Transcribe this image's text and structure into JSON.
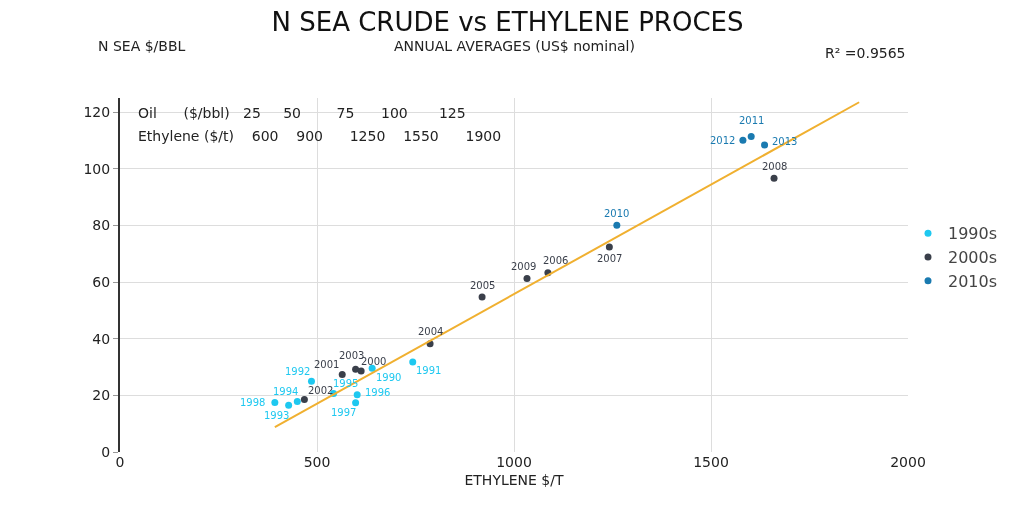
{
  "chart_data": {
    "type": "scatter",
    "title": "N SEA CRUDE vs ETHYLENE PROCES",
    "subtitle": "ANNUAL AVERAGES (US$ nominal)",
    "xlabel": "ETHYLENE $/T",
    "ylabel": "N SEA $/BBL",
    "xlim": [
      0,
      2000
    ],
    "xticks": [
      0,
      500,
      1000,
      1500,
      2000
    ],
    "ylim": [
      0,
      125
    ],
    "yticks": [
      0,
      20,
      40,
      60,
      80,
      100,
      120
    ],
    "grid": true,
    "legend": "right",
    "marker": "circle",
    "series": [
      {
        "name": "1990s",
        "color": "#1ec8f0",
        "x": [
          640,
          743,
          486,
          428,
          450,
          542,
          602,
          598,
          393
        ],
        "values": [
          29.6,
          31.8,
          25,
          16.5,
          17.8,
          20.7,
          20.2,
          17.4,
          17.5
        ]
      },
      {
        "name": "2000s",
        "color": "#3a3f4a",
        "x": [
          612,
          564,
          468,
          598,
          787,
          919,
          1086,
          1242,
          1660,
          1033
        ],
        "values": [
          28.6,
          27.4,
          18.5,
          29.2,
          38.2,
          54.7,
          63.3,
          72.4,
          96.7,
          61.3
        ]
      },
      {
        "name": "2010s",
        "color": "#1a7ab0",
        "x": [
          1261,
          1602,
          1581,
          1636
        ],
        "values": [
          80.1,
          111.4,
          110.1,
          108.4
        ]
      },
      {
        "type": "line",
        "color": "#f0b030",
        "x": [
          393,
          1876
        ],
        "values": [
          8.8,
          123.5
        ],
        "line_style": "solid",
        "marker": "none"
      }
    ],
    "annotations": [
      "R² =0.9565",
      "Oil      ($/bbl)   25     50        75      100       125",
      "Ethylene ($/t)    600    900      1250    1550      1900",
      {
        "text": "1990",
        "x": 640,
        "y": 29.6
      },
      {
        "text": "1991",
        "x": 743,
        "y": 31.8
      },
      {
        "text": "1992",
        "x": 486,
        "y": 25
      },
      {
        "text": "1993",
        "x": 428,
        "y": 16.5
      },
      {
        "text": "1994",
        "x": 450,
        "y": 17.8
      },
      {
        "text": "1995",
        "x": 542,
        "y": 20.7
      },
      {
        "text": "1996",
        "x": 602,
        "y": 20.2
      },
      {
        "text": "1997",
        "x": 598,
        "y": 17.4
      },
      {
        "text": "1998",
        "x": 393,
        "y": 17.5
      },
      {
        "text": "2000",
        "x": 612,
        "y": 28.6
      },
      {
        "text": "2001",
        "x": 564,
        "y": 27.4
      },
      {
        "text": "2002",
        "x": 468,
        "y": 18.5
      },
      {
        "text": "2003",
        "x": 598,
        "y": 29.2
      },
      {
        "text": "2004",
        "x": 787,
        "y": 38.2
      },
      {
        "text": "2005",
        "x": 919,
        "y": 54.7
      },
      {
        "text": "2006",
        "x": 1086,
        "y": 63.3
      },
      {
        "text": "2007",
        "x": 1242,
        "y": 72.4
      },
      {
        "text": "2008",
        "x": 1660,
        "y": 96.7
      },
      {
        "text": "2009",
        "x": 1033,
        "y": 61.3
      },
      {
        "text": "2010",
        "x": 1261,
        "y": 80.1
      },
      {
        "text": "2011",
        "x": 1602,
        "y": 111.4
      },
      {
        "text": "2012",
        "x": 1581,
        "y": 110.1
      },
      {
        "text": "2013",
        "x": 1636,
        "y": 108.4
      }
    ]
  }
}
